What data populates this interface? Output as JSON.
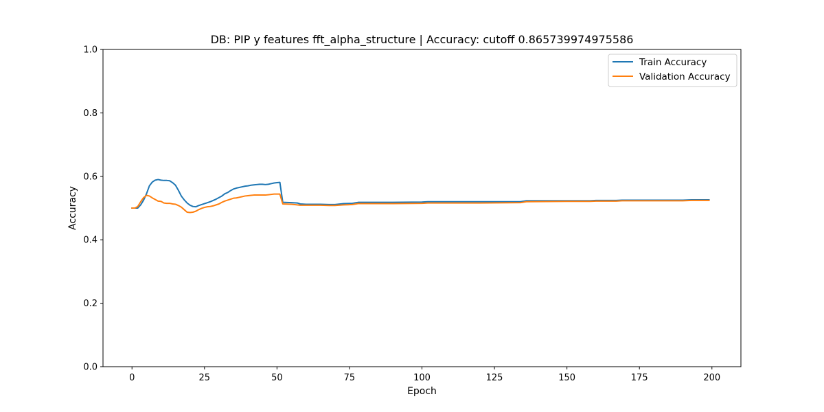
{
  "chart_data": {
    "type": "line",
    "title": "DB: PIP y features fft_alpha_structure | Accuracy: cutoff 0.865739974975586",
    "xlabel": "Epoch",
    "ylabel": "Accuracy",
    "xlim": [
      -10,
      210
    ],
    "ylim": [
      0.0,
      1.0
    ],
    "xticks": [
      "0",
      "25",
      "50",
      "75",
      "100",
      "125",
      "150",
      "175",
      "200"
    ],
    "yticks": [
      "0.0",
      "0.2",
      "0.4",
      "0.6",
      "0.8",
      "1.0"
    ],
    "grid": false,
    "legend_position": "top-right",
    "series": [
      {
        "name": "Train Accuracy",
        "color": "#1f77b4",
        "points": [
          [
            0,
            0.5
          ],
          [
            1,
            0.5
          ],
          [
            2,
            0.5
          ],
          [
            3,
            0.51
          ],
          [
            4,
            0.525
          ],
          [
            5,
            0.545
          ],
          [
            6,
            0.57
          ],
          [
            7,
            0.582
          ],
          [
            8,
            0.588
          ],
          [
            9,
            0.59
          ],
          [
            10,
            0.588
          ],
          [
            11,
            0.587
          ],
          [
            12,
            0.587
          ],
          [
            13,
            0.586
          ],
          [
            14,
            0.58
          ],
          [
            15,
            0.572
          ],
          [
            16,
            0.556
          ],
          [
            17,
            0.538
          ],
          [
            18,
            0.526
          ],
          [
            19,
            0.516
          ],
          [
            20,
            0.509
          ],
          [
            21,
            0.505
          ],
          [
            22,
            0.504
          ],
          [
            23,
            0.508
          ],
          [
            24,
            0.511
          ],
          [
            25,
            0.514
          ],
          [
            26,
            0.517
          ],
          [
            27,
            0.52
          ],
          [
            28,
            0.524
          ],
          [
            29,
            0.528
          ],
          [
            30,
            0.533
          ],
          [
            31,
            0.538
          ],
          [
            32,
            0.545
          ],
          [
            33,
            0.549
          ],
          [
            34,
            0.555
          ],
          [
            35,
            0.56
          ],
          [
            36,
            0.563
          ],
          [
            37,
            0.565
          ],
          [
            38,
            0.567
          ],
          [
            39,
            0.569
          ],
          [
            40,
            0.57
          ],
          [
            41,
            0.572
          ],
          [
            42,
            0.573
          ],
          [
            43,
            0.574
          ],
          [
            44,
            0.575
          ],
          [
            45,
            0.575
          ],
          [
            46,
            0.574
          ],
          [
            47,
            0.575
          ],
          [
            48,
            0.577
          ],
          [
            49,
            0.579
          ],
          [
            50,
            0.58
          ],
          [
            51,
            0.581
          ],
          [
            52,
            0.518
          ],
          [
            55,
            0.517
          ],
          [
            57,
            0.516
          ],
          [
            58,
            0.513
          ],
          [
            60,
            0.512
          ],
          [
            65,
            0.512
          ],
          [
            68,
            0.511
          ],
          [
            70,
            0.511
          ],
          [
            73,
            0.514
          ],
          [
            76,
            0.515
          ],
          [
            78,
            0.518
          ],
          [
            90,
            0.518
          ],
          [
            100,
            0.519
          ],
          [
            102,
            0.52
          ],
          [
            120,
            0.52
          ],
          [
            134,
            0.52
          ],
          [
            136,
            0.523
          ],
          [
            150,
            0.523
          ],
          [
            158,
            0.523
          ],
          [
            160,
            0.524
          ],
          [
            167,
            0.524
          ],
          [
            169,
            0.525
          ],
          [
            190,
            0.525
          ],
          [
            193,
            0.526
          ],
          [
            199,
            0.526
          ]
        ]
      },
      {
        "name": "Validation Accuracy",
        "color": "#ff7f0e",
        "points": [
          [
            0,
            0.5
          ],
          [
            1,
            0.5
          ],
          [
            2,
            0.505
          ],
          [
            3,
            0.52
          ],
          [
            4,
            0.533
          ],
          [
            5,
            0.54
          ],
          [
            6,
            0.538
          ],
          [
            7,
            0.532
          ],
          [
            8,
            0.527
          ],
          [
            9,
            0.522
          ],
          [
            10,
            0.521
          ],
          [
            11,
            0.516
          ],
          [
            12,
            0.515
          ],
          [
            13,
            0.515
          ],
          [
            14,
            0.513
          ],
          [
            15,
            0.512
          ],
          [
            16,
            0.508
          ],
          [
            17,
            0.503
          ],
          [
            18,
            0.495
          ],
          [
            19,
            0.487
          ],
          [
            20,
            0.486
          ],
          [
            21,
            0.487
          ],
          [
            22,
            0.49
          ],
          [
            23,
            0.495
          ],
          [
            24,
            0.499
          ],
          [
            25,
            0.502
          ],
          [
            26,
            0.504
          ],
          [
            27,
            0.505
          ],
          [
            28,
            0.507
          ],
          [
            29,
            0.51
          ],
          [
            30,
            0.513
          ],
          [
            31,
            0.518
          ],
          [
            32,
            0.522
          ],
          [
            33,
            0.525
          ],
          [
            34,
            0.528
          ],
          [
            35,
            0.531
          ],
          [
            36,
            0.532
          ],
          [
            37,
            0.534
          ],
          [
            38,
            0.536
          ],
          [
            39,
            0.538
          ],
          [
            40,
            0.539
          ],
          [
            41,
            0.54
          ],
          [
            42,
            0.541
          ],
          [
            43,
            0.541
          ],
          [
            44,
            0.541
          ],
          [
            45,
            0.541
          ],
          [
            46,
            0.541
          ],
          [
            47,
            0.542
          ],
          [
            48,
            0.543
          ],
          [
            49,
            0.544
          ],
          [
            50,
            0.544
          ],
          [
            51,
            0.544
          ],
          [
            52,
            0.513
          ],
          [
            55,
            0.512
          ],
          [
            57,
            0.51
          ],
          [
            58,
            0.509
          ],
          [
            60,
            0.509
          ],
          [
            65,
            0.509
          ],
          [
            68,
            0.508
          ],
          [
            70,
            0.508
          ],
          [
            73,
            0.51
          ],
          [
            76,
            0.511
          ],
          [
            78,
            0.514
          ],
          [
            90,
            0.514
          ],
          [
            100,
            0.515
          ],
          [
            102,
            0.516
          ],
          [
            120,
            0.516
          ],
          [
            134,
            0.517
          ],
          [
            136,
            0.52
          ],
          [
            150,
            0.521
          ],
          [
            158,
            0.521
          ],
          [
            160,
            0.522
          ],
          [
            167,
            0.522
          ],
          [
            169,
            0.523
          ],
          [
            190,
            0.523
          ],
          [
            193,
            0.524
          ],
          [
            199,
            0.524
          ]
        ]
      }
    ]
  }
}
